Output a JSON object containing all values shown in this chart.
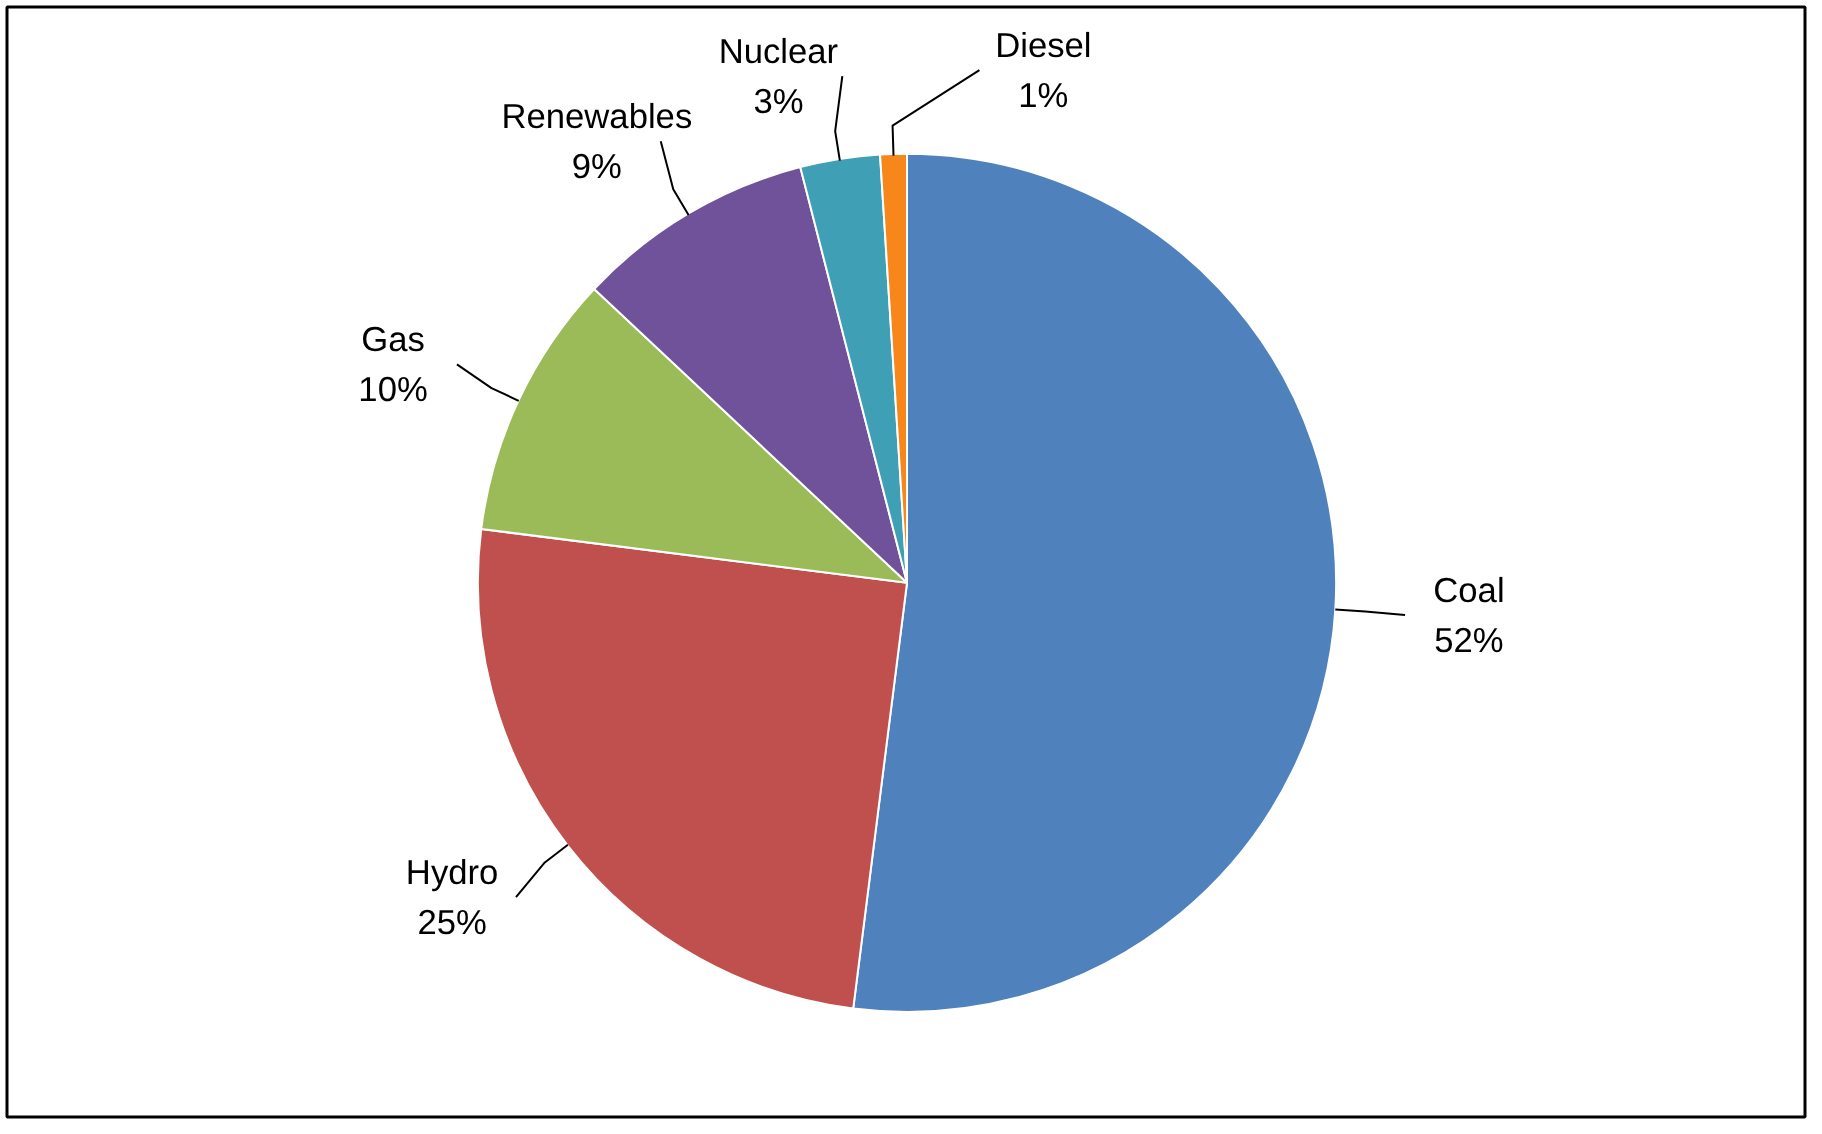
{
  "chart_data": {
    "type": "pie",
    "categories": [
      "Coal",
      "Hydro",
      "Gas",
      "Renewables",
      "Nuclear",
      "Diesel"
    ],
    "values": [
      52,
      25,
      10,
      9,
      3,
      1
    ],
    "value_labels": [
      "52%",
      "25%",
      "10%",
      "9%",
      "3%",
      "1%"
    ],
    "colors": [
      "#4f81bd",
      "#c0504d",
      "#9bbb59",
      "#6f529a",
      "#3f9fb5",
      "#f7861b"
    ]
  }
}
